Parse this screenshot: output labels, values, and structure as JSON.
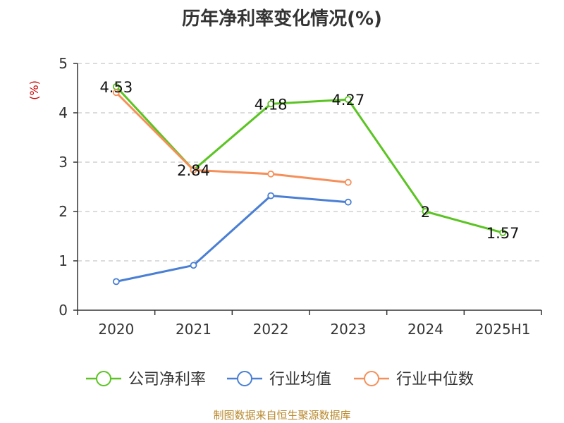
{
  "chart_data": {
    "type": "line",
    "title": "历年净利率变化情况(%)",
    "ylabel": "(%)",
    "categories": [
      "2020",
      "2021",
      "2022",
      "2023",
      "2024",
      "2025H1"
    ],
    "yticks": [
      "0",
      "1",
      "2",
      "3",
      "4",
      "5"
    ],
    "ylim": [
      0,
      5
    ],
    "grid": true,
    "legend_position": "bottom",
    "series": [
      {
        "name": "公司净利率",
        "color": "#5bc423",
        "values": [
          4.53,
          2.84,
          4.18,
          4.27,
          2,
          1.57
        ],
        "labels": [
          "4.53",
          "2.84",
          "4.18",
          "4.27",
          "2",
          "1.57"
        ]
      },
      {
        "name": "行业均值",
        "color": "#4a7fd4",
        "values": [
          0.58,
          0.91,
          2.32,
          2.19,
          null,
          null
        ]
      },
      {
        "name": "行业中位数",
        "color": "#f5905a",
        "values": [
          4.41,
          2.84,
          2.76,
          2.59,
          null,
          null
        ]
      }
    ],
    "ylabel_color": "#cc0000"
  },
  "source": "制图数据来自恒生聚源数据库"
}
